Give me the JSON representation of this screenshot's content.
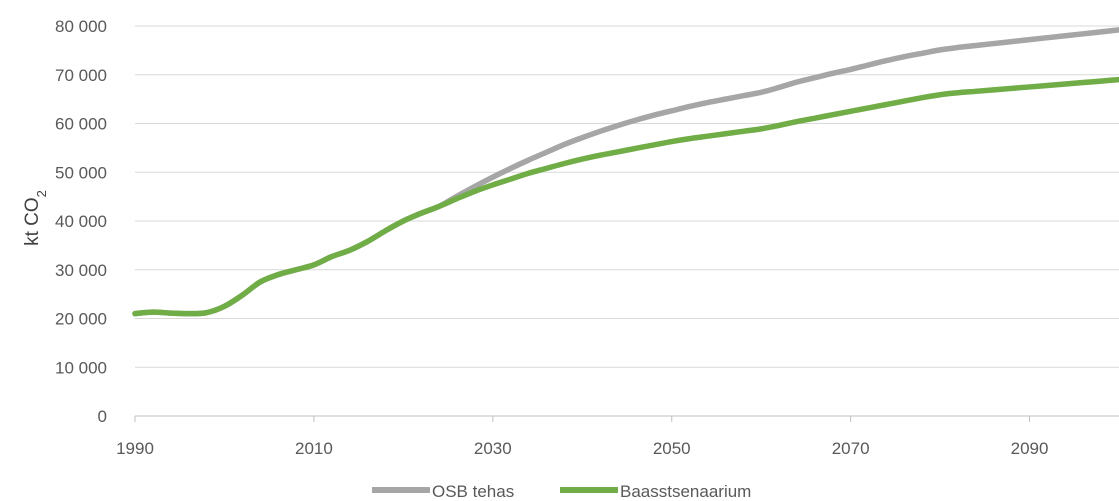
{
  "chart_data": {
    "type": "line",
    "ylabel": {
      "main": "kt CO",
      "sub": "2"
    },
    "ylim": [
      0,
      80000
    ],
    "y_ticks": [
      "0",
      "10 000",
      "20 000",
      "30 000",
      "40 000",
      "50 000",
      "60 000",
      "70 000",
      "80 000"
    ],
    "xlim": [
      1990,
      2100
    ],
    "x_ticks": [
      "1990",
      "2010",
      "2030",
      "2050",
      "2070",
      "2090"
    ],
    "grid": true,
    "legend": "bottom",
    "series": [
      {
        "name": "OSB tehas",
        "color": "#a6a6a6",
        "x": [
          1990,
          1992,
          1994,
          1996,
          1998,
          2000,
          2002,
          2004,
          2006,
          2008,
          2010,
          2012,
          2014,
          2016,
          2018,
          2020,
          2022,
          2024,
          2026,
          2028,
          2030,
          2032,
          2034,
          2036,
          2038,
          2040,
          2042,
          2044,
          2046,
          2048,
          2050,
          2052,
          2054,
          2056,
          2058,
          2060,
          2062,
          2064,
          2066,
          2068,
          2070,
          2072,
          2074,
          2076,
          2078,
          2080,
          2082,
          2084,
          2086,
          2088,
          2090,
          2092,
          2094,
          2096,
          2098,
          2100
        ],
        "values": [
          21000,
          21300,
          21100,
          21000,
          21200,
          22500,
          24800,
          27500,
          29000,
          30000,
          31000,
          32700,
          34000,
          35800,
          38000,
          40000,
          41600,
          43000,
          45100,
          47100,
          49000,
          50800,
          52500,
          54100,
          55700,
          57100,
          58400,
          59600,
          60700,
          61700,
          62600,
          63500,
          64300,
          65000,
          65700,
          66400,
          67400,
          68500,
          69400,
          70300,
          71100,
          72000,
          72900,
          73700,
          74400,
          75100,
          75600,
          76000,
          76400,
          76800,
          77200,
          77600,
          78000,
          78400,
          78800,
          79200
        ]
      },
      {
        "name": "Baasstsenaarium",
        "color": "#70ad47",
        "x": [
          1990,
          1992,
          1994,
          1996,
          1998,
          2000,
          2002,
          2004,
          2006,
          2008,
          2010,
          2012,
          2014,
          2016,
          2018,
          2020,
          2022,
          2024,
          2026,
          2028,
          2030,
          2032,
          2034,
          2036,
          2038,
          2040,
          2042,
          2044,
          2046,
          2048,
          2050,
          2052,
          2054,
          2056,
          2058,
          2060,
          2062,
          2064,
          2066,
          2068,
          2070,
          2072,
          2074,
          2076,
          2078,
          2080,
          2082,
          2084,
          2086,
          2088,
          2090,
          2092,
          2094,
          2096,
          2098,
          2100
        ],
        "values": [
          21000,
          21300,
          21100,
          21000,
          21200,
          22500,
          24800,
          27500,
          29000,
          30000,
          31000,
          32700,
          34000,
          35800,
          38000,
          40000,
          41600,
          43000,
          44600,
          46100,
          47400,
          48600,
          49800,
          50800,
          51800,
          52700,
          53500,
          54200,
          54900,
          55600,
          56300,
          56900,
          57400,
          57900,
          58400,
          58900,
          59600,
          60400,
          61100,
          61800,
          62500,
          63200,
          63900,
          64600,
          65300,
          65900,
          66300,
          66600,
          66900,
          67200,
          67500,
          67800,
          68100,
          68400,
          68700,
          69000
        ]
      }
    ]
  }
}
